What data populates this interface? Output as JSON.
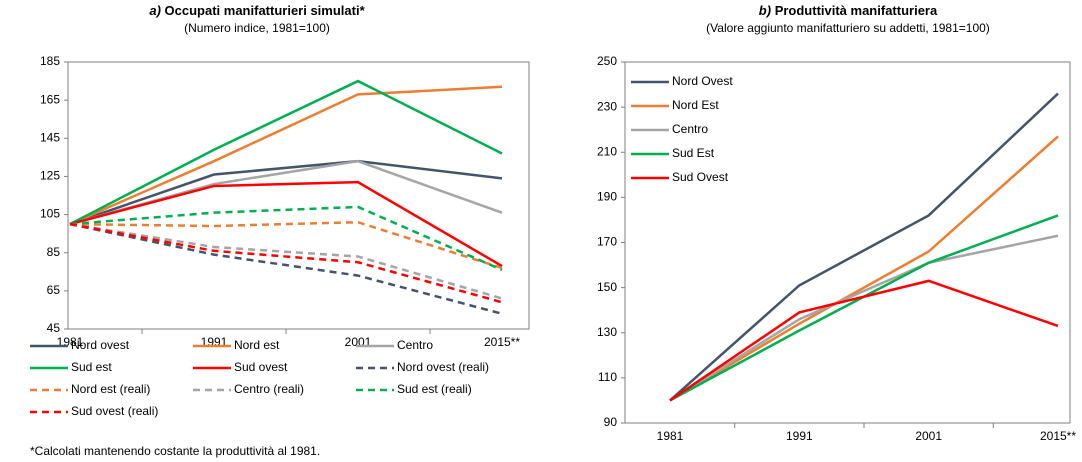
{
  "chart_data": [
    {
      "type": "line",
      "title_label": "a)",
      "title": "Occupati manifatturieri simulati*",
      "subtitle": "(Numero indice, 1981=100)",
      "categories": [
        "1981",
        "1991",
        "2001",
        "2015**"
      ],
      "ylim": [
        45,
        185
      ],
      "yticks": [
        45,
        65,
        85,
        105,
        125,
        145,
        165,
        185
      ],
      "legend": "bottom",
      "series": [
        {
          "name": "Nord ovest",
          "color": "#44546a",
          "linestyle": "solid",
          "values": [
            100,
            126,
            133,
            124
          ]
        },
        {
          "name": "Nord est",
          "color": "#ed7d31",
          "linestyle": "solid",
          "values": [
            100,
            133,
            168,
            172
          ]
        },
        {
          "name": "Centro",
          "color": "#a5a5a5",
          "linestyle": "solid",
          "values": [
            100,
            121,
            133,
            106
          ]
        },
        {
          "name": "Sud est",
          "color": "#00b050",
          "linestyle": "solid",
          "values": [
            100,
            139,
            175,
            137
          ]
        },
        {
          "name": "Sud ovest",
          "color": "#ff0000",
          "linestyle": "solid",
          "values": [
            100,
            120,
            122,
            78
          ]
        },
        {
          "name": "Nord ovest (reali)",
          "color": "#44546a",
          "linestyle": "dashed",
          "values": [
            100,
            84,
            73,
            53
          ]
        },
        {
          "name": "Nord est (reali)",
          "color": "#ed7d31",
          "linestyle": "dashed",
          "values": [
            100,
            99,
            101,
            77
          ]
        },
        {
          "name": "Centro (reali)",
          "color": "#a5a5a5",
          "linestyle": "dashed",
          "values": [
            100,
            88,
            83,
            61
          ]
        },
        {
          "name": "Sud est (reali)",
          "color": "#00b050",
          "linestyle": "dashed",
          "values": [
            100,
            106,
            109,
            76
          ]
        },
        {
          "name": "Sud ovest (reali)",
          "color": "#ff0000",
          "linestyle": "dashed",
          "values": [
            100,
            86,
            80,
            59
          ]
        }
      ],
      "footnote": "*Calcolati mantenendo costante la produttività al 1981."
    },
    {
      "type": "line",
      "title_label": "b)",
      "title": "Produttività manifatturiera",
      "subtitle": "(Valore aggiunto manifatturiero su addetti, 1981=100)",
      "categories": [
        "1981",
        "1991",
        "2001",
        "2015**"
      ],
      "ylim": [
        90,
        250
      ],
      "yticks": [
        90,
        110,
        130,
        150,
        170,
        190,
        210,
        230,
        250
      ],
      "legend": "upper left",
      "series": [
        {
          "name": "Nord Ovest",
          "color": "#44546a",
          "linestyle": "solid",
          "values": [
            100,
            151,
            182,
            236
          ]
        },
        {
          "name": "Nord Est",
          "color": "#ed7d31",
          "linestyle": "solid",
          "values": [
            100,
            134,
            166,
            217
          ]
        },
        {
          "name": "Centro",
          "color": "#a5a5a5",
          "linestyle": "solid",
          "values": [
            100,
            136,
            161,
            173
          ]
        },
        {
          "name": "Sud Est",
          "color": "#00b050",
          "linestyle": "solid",
          "values": [
            100,
            131,
            161,
            182
          ]
        },
        {
          "name": "Sud Ovest",
          "color": "#ff0000",
          "linestyle": "solid",
          "values": [
            100,
            139,
            153,
            133
          ]
        }
      ]
    }
  ]
}
